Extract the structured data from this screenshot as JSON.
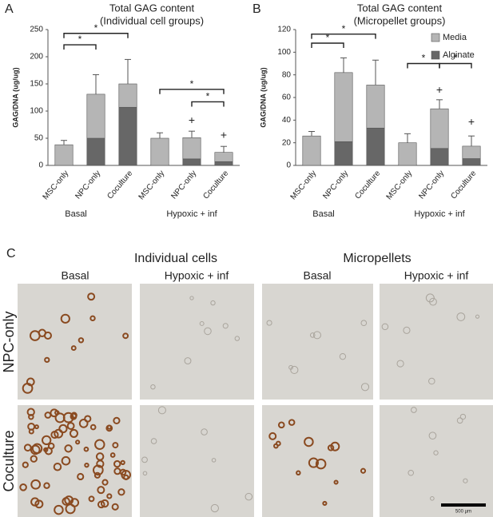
{
  "chart_data": [
    {
      "type": "bar",
      "panel_label": "A",
      "title": "Total GAG content",
      "subtitle": "(Individual cell groups)",
      "y_label": "GAG/DNA (ug/ug)",
      "categories": [
        "MSC-only",
        "NPC-only",
        "Coculture",
        "MSC-only",
        "NPC-only",
        "Coculture"
      ],
      "groups": [
        {
          "label": "Basal",
          "from": 0,
          "to": 2
        },
        {
          "label": "Hypoxic + inf",
          "from": 3,
          "to": 5
        }
      ],
      "series": [
        {
          "name": "Alginate",
          "color": "#676767",
          "values": [
            null,
            50,
            107,
            null,
            12,
            7
          ]
        },
        {
          "name": "Media",
          "color": "#b5b5b5",
          "values": [
            38,
            81,
            43,
            50,
            39,
            17
          ]
        }
      ],
      "errors": [
        8,
        36,
        45,
        10,
        12,
        11
      ],
      "ylim": [
        0,
        250
      ],
      "yticks": [
        0,
        50,
        100,
        150,
        200,
        250
      ],
      "legend": "none",
      "annotations": [
        {
          "kind": "bracket",
          "text": "*",
          "from": 0,
          "to": 1,
          "y": 222
        },
        {
          "kind": "bracket",
          "text": "*",
          "from": 0,
          "to": 2,
          "y": 243
        },
        {
          "kind": "bracket",
          "text": "*",
          "from": 3,
          "to": 5,
          "y": 140
        },
        {
          "kind": "bracket",
          "text": "*",
          "from": 4,
          "to": 5,
          "y": 117
        },
        {
          "kind": "mark",
          "text": "+",
          "at": 4,
          "y": 82
        },
        {
          "kind": "mark",
          "text": "+",
          "at": 5,
          "y": 55
        }
      ]
    },
    {
      "type": "bar",
      "panel_label": "B",
      "title": "Total GAG content",
      "subtitle": "(Micropellet groups)",
      "y_label": "GAG/DNA (ug/ug)",
      "categories": [
        "MSC-only",
        "NPC-only",
        "Coculture",
        "MSC-only",
        "NPC-only",
        "Coculture"
      ],
      "groups": [
        {
          "label": "Basal",
          "from": 0,
          "to": 2
        },
        {
          "label": "Hypoxic + inf",
          "from": 3,
          "to": 5
        }
      ],
      "series": [
        {
          "name": "Alginate",
          "color": "#676767",
          "values": [
            null,
            21,
            33,
            null,
            15,
            6
          ]
        },
        {
          "name": "Media",
          "color": "#b5b5b5",
          "values": [
            26,
            61,
            38,
            20,
            35,
            11
          ]
        }
      ],
      "errors": [
        4,
        13,
        22,
        8,
        8,
        9
      ],
      "ylim": [
        0,
        120
      ],
      "yticks": [
        0,
        20,
        40,
        60,
        80,
        100,
        120
      ],
      "legend": "top-right",
      "annotations": [
        {
          "kind": "bracket",
          "text": "*",
          "from": 0,
          "to": 1,
          "y": 108
        },
        {
          "kind": "bracket",
          "text": "*",
          "from": 0,
          "to": 2,
          "y": 116
        },
        {
          "kind": "bracket",
          "text": "*",
          "from": 3,
          "to": 4,
          "y": 90
        },
        {
          "kind": "bracket",
          "text": "*",
          "from": 4,
          "to": 5,
          "y": 90
        },
        {
          "kind": "mark",
          "text": "+",
          "at": 4,
          "y": 66
        },
        {
          "kind": "mark",
          "text": "+",
          "at": 5,
          "y": 38
        }
      ]
    }
  ],
  "panel_c": {
    "panel_label": "C",
    "column_groups": [
      "Individual cells",
      "Micropellets"
    ],
    "columns": [
      "Basal",
      "Hypoxic + inf",
      "Basal",
      "Hypoxic + inf"
    ],
    "rows": [
      "NPC-only",
      "Coculture"
    ],
    "scale_bar": "500 µm"
  }
}
